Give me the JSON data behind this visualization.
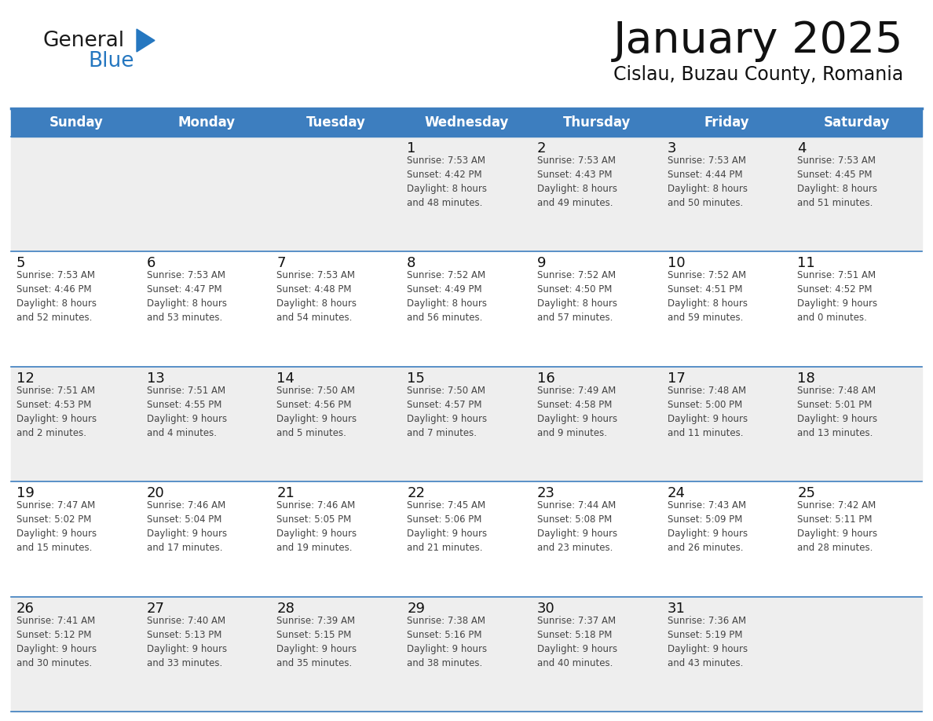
{
  "title": "January 2025",
  "subtitle": "Cislau, Buzau County, Romania",
  "header_color": "#3d7ebf",
  "header_text_color": "#ffffff",
  "bg_color": "#ffffff",
  "alt_row_color": "#eeeeee",
  "cell_text_color": "#333333",
  "border_color": "#3d7ebf",
  "logo_general_color": "#1a1a1a",
  "logo_blue_color": "#2577c0",
  "day_headers": [
    "Sunday",
    "Monday",
    "Tuesday",
    "Wednesday",
    "Thursday",
    "Friday",
    "Saturday"
  ],
  "weeks": [
    [
      {
        "day": "",
        "info": ""
      },
      {
        "day": "",
        "info": ""
      },
      {
        "day": "",
        "info": ""
      },
      {
        "day": "1",
        "info": "Sunrise: 7:53 AM\nSunset: 4:42 PM\nDaylight: 8 hours\nand 48 minutes."
      },
      {
        "day": "2",
        "info": "Sunrise: 7:53 AM\nSunset: 4:43 PM\nDaylight: 8 hours\nand 49 minutes."
      },
      {
        "day": "3",
        "info": "Sunrise: 7:53 AM\nSunset: 4:44 PM\nDaylight: 8 hours\nand 50 minutes."
      },
      {
        "day": "4",
        "info": "Sunrise: 7:53 AM\nSunset: 4:45 PM\nDaylight: 8 hours\nand 51 minutes."
      }
    ],
    [
      {
        "day": "5",
        "info": "Sunrise: 7:53 AM\nSunset: 4:46 PM\nDaylight: 8 hours\nand 52 minutes."
      },
      {
        "day": "6",
        "info": "Sunrise: 7:53 AM\nSunset: 4:47 PM\nDaylight: 8 hours\nand 53 minutes."
      },
      {
        "day": "7",
        "info": "Sunrise: 7:53 AM\nSunset: 4:48 PM\nDaylight: 8 hours\nand 54 minutes."
      },
      {
        "day": "8",
        "info": "Sunrise: 7:52 AM\nSunset: 4:49 PM\nDaylight: 8 hours\nand 56 minutes."
      },
      {
        "day": "9",
        "info": "Sunrise: 7:52 AM\nSunset: 4:50 PM\nDaylight: 8 hours\nand 57 minutes."
      },
      {
        "day": "10",
        "info": "Sunrise: 7:52 AM\nSunset: 4:51 PM\nDaylight: 8 hours\nand 59 minutes."
      },
      {
        "day": "11",
        "info": "Sunrise: 7:51 AM\nSunset: 4:52 PM\nDaylight: 9 hours\nand 0 minutes."
      }
    ],
    [
      {
        "day": "12",
        "info": "Sunrise: 7:51 AM\nSunset: 4:53 PM\nDaylight: 9 hours\nand 2 minutes."
      },
      {
        "day": "13",
        "info": "Sunrise: 7:51 AM\nSunset: 4:55 PM\nDaylight: 9 hours\nand 4 minutes."
      },
      {
        "day": "14",
        "info": "Sunrise: 7:50 AM\nSunset: 4:56 PM\nDaylight: 9 hours\nand 5 minutes."
      },
      {
        "day": "15",
        "info": "Sunrise: 7:50 AM\nSunset: 4:57 PM\nDaylight: 9 hours\nand 7 minutes."
      },
      {
        "day": "16",
        "info": "Sunrise: 7:49 AM\nSunset: 4:58 PM\nDaylight: 9 hours\nand 9 minutes."
      },
      {
        "day": "17",
        "info": "Sunrise: 7:48 AM\nSunset: 5:00 PM\nDaylight: 9 hours\nand 11 minutes."
      },
      {
        "day": "18",
        "info": "Sunrise: 7:48 AM\nSunset: 5:01 PM\nDaylight: 9 hours\nand 13 minutes."
      }
    ],
    [
      {
        "day": "19",
        "info": "Sunrise: 7:47 AM\nSunset: 5:02 PM\nDaylight: 9 hours\nand 15 minutes."
      },
      {
        "day": "20",
        "info": "Sunrise: 7:46 AM\nSunset: 5:04 PM\nDaylight: 9 hours\nand 17 minutes."
      },
      {
        "day": "21",
        "info": "Sunrise: 7:46 AM\nSunset: 5:05 PM\nDaylight: 9 hours\nand 19 minutes."
      },
      {
        "day": "22",
        "info": "Sunrise: 7:45 AM\nSunset: 5:06 PM\nDaylight: 9 hours\nand 21 minutes."
      },
      {
        "day": "23",
        "info": "Sunrise: 7:44 AM\nSunset: 5:08 PM\nDaylight: 9 hours\nand 23 minutes."
      },
      {
        "day": "24",
        "info": "Sunrise: 7:43 AM\nSunset: 5:09 PM\nDaylight: 9 hours\nand 26 minutes."
      },
      {
        "day": "25",
        "info": "Sunrise: 7:42 AM\nSunset: 5:11 PM\nDaylight: 9 hours\nand 28 minutes."
      }
    ],
    [
      {
        "day": "26",
        "info": "Sunrise: 7:41 AM\nSunset: 5:12 PM\nDaylight: 9 hours\nand 30 minutes."
      },
      {
        "day": "27",
        "info": "Sunrise: 7:40 AM\nSunset: 5:13 PM\nDaylight: 9 hours\nand 33 minutes."
      },
      {
        "day": "28",
        "info": "Sunrise: 7:39 AM\nSunset: 5:15 PM\nDaylight: 9 hours\nand 35 minutes."
      },
      {
        "day": "29",
        "info": "Sunrise: 7:38 AM\nSunset: 5:16 PM\nDaylight: 9 hours\nand 38 minutes."
      },
      {
        "day": "30",
        "info": "Sunrise: 7:37 AM\nSunset: 5:18 PM\nDaylight: 9 hours\nand 40 minutes."
      },
      {
        "day": "31",
        "info": "Sunrise: 7:36 AM\nSunset: 5:19 PM\nDaylight: 9 hours\nand 43 minutes."
      },
      {
        "day": "",
        "info": ""
      }
    ]
  ],
  "figwidth": 11.88,
  "figheight": 9.18,
  "dpi": 100
}
